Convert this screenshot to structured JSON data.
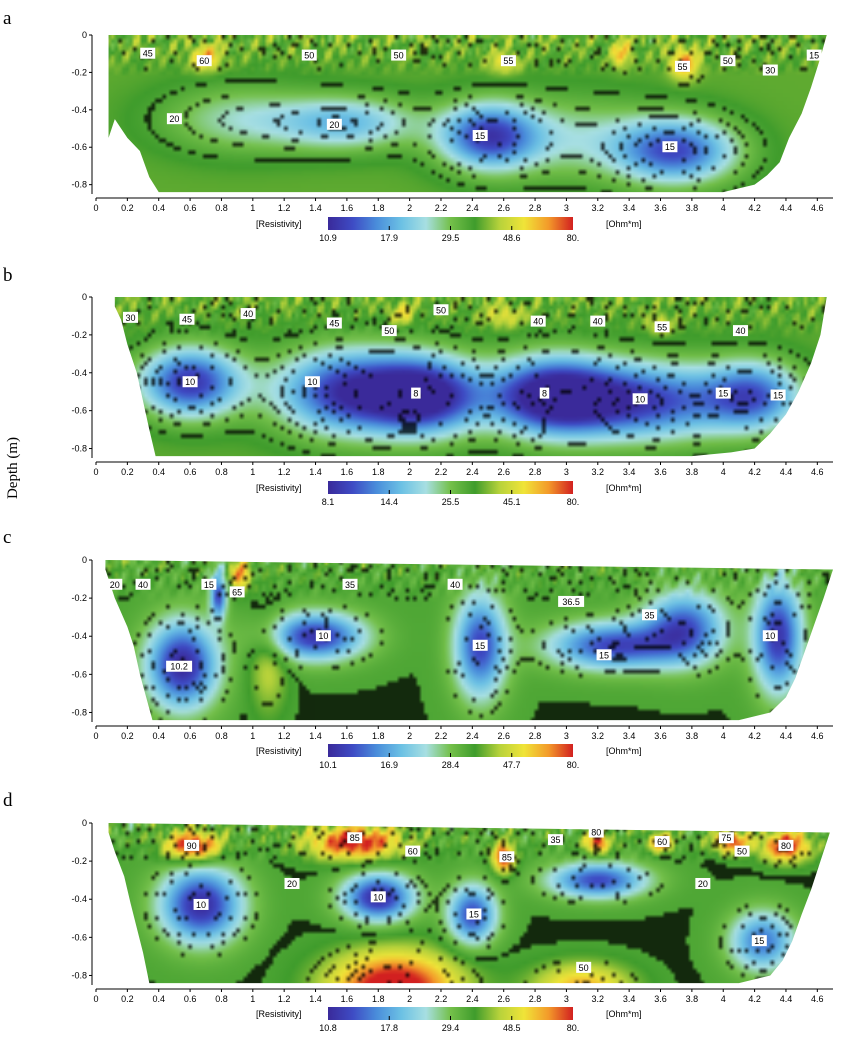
{
  "figure": {
    "ylabel": "Depth (m)"
  },
  "colorscale": {
    "colors": [
      "#3a2a9a",
      "#3e4bc4",
      "#4a8edb",
      "#6cc1e4",
      "#a7dfe2",
      "#74c04a",
      "#3f9c2c",
      "#b7d23b",
      "#f0e438",
      "#f39a2a",
      "#d22020"
    ]
  },
  "chart_data": [
    {
      "type": "heatmap",
      "panel": "a",
      "x_ticks": [
        "0",
        "0.2",
        "0.4",
        "0.6",
        "0.8",
        "1",
        "1.2",
        "1.4",
        "1.6",
        "1.8",
        "2",
        "2.2",
        "2.4",
        "2.6",
        "2.8",
        "3",
        "3.2",
        "3.4",
        "3.6",
        "3.8",
        "4",
        "4.2",
        "4.4",
        "4.6"
      ],
      "y_ticks": [
        "0",
        "-0.2",
        "-0.4",
        "-0.6",
        "-0.8"
      ],
      "xlim": [
        0,
        4.7
      ],
      "ylim": [
        -0.85,
        0
      ],
      "colorbar": {
        "label": "[Resistivity]",
        "unit": "[Ohm*m]",
        "values": [
          "10.9",
          "17.9",
          "29.5",
          "48.6",
          "80."
        ],
        "min": 10.9,
        "max": 80
      },
      "background": 38,
      "surface_noise": 14,
      "anomalies": [
        {
          "x": 1.6,
          "y": -0.47,
          "rx": 0.45,
          "ry": 0.14,
          "value": 20
        },
        {
          "x": 2.5,
          "y": -0.54,
          "rx": 0.3,
          "ry": 0.17,
          "value": 14
        },
        {
          "x": 3.7,
          "y": -0.62,
          "rx": 0.38,
          "ry": 0.17,
          "value": 14
        },
        {
          "x": 0.9,
          "y": -0.45,
          "rx": 0.5,
          "ry": 0.18,
          "value": 26
        },
        {
          "x": 3.0,
          "y": -0.55,
          "rx": 0.6,
          "ry": 0.22,
          "value": 26
        },
        {
          "x": 0.7,
          "y": -0.12,
          "rx": 0.1,
          "ry": 0.07,
          "value": 62
        },
        {
          "x": 3.75,
          "y": -0.15,
          "rx": 0.09,
          "ry": 0.08,
          "value": 68
        },
        {
          "x": 3.35,
          "y": -0.1,
          "rx": 0.06,
          "ry": 0.07,
          "value": 60
        },
        {
          "x": 2.6,
          "y": -0.15,
          "rx": 0.1,
          "ry": 0.06,
          "value": 52
        }
      ],
      "bottom_profile": [
        [
          0.08,
          -0.55
        ],
        [
          0.12,
          -0.45
        ],
        [
          0.2,
          -0.55
        ],
        [
          0.28,
          -0.62
        ],
        [
          0.34,
          -0.76
        ],
        [
          0.4,
          -0.84
        ],
        [
          1.0,
          -0.84
        ],
        [
          2.0,
          -0.84
        ],
        [
          3.0,
          -0.84
        ],
        [
          3.6,
          -0.84
        ],
        [
          4.0,
          -0.84
        ],
        [
          4.2,
          -0.8
        ],
        [
          4.28,
          -0.75
        ],
        [
          4.36,
          -0.68
        ],
        [
          4.42,
          -0.55
        ],
        [
          4.5,
          -0.42
        ],
        [
          4.56,
          -0.28
        ],
        [
          4.62,
          -0.12
        ],
        [
          4.66,
          0
        ]
      ],
      "contour_labels": [
        {
          "text": "45",
          "x": 0.33,
          "y": -0.1
        },
        {
          "text": "60",
          "x": 0.69,
          "y": -0.14
        },
        {
          "text": "50",
          "x": 1.36,
          "y": -0.11
        },
        {
          "text": "50",
          "x": 1.93,
          "y": -0.11
        },
        {
          "text": "55",
          "x": 2.63,
          "y": -0.14
        },
        {
          "text": "55",
          "x": 3.74,
          "y": -0.17
        },
        {
          "text": "50",
          "x": 4.03,
          "y": -0.14
        },
        {
          "text": "30",
          "x": 4.3,
          "y": -0.19
        },
        {
          "text": "15",
          "x": 4.58,
          "y": -0.11
        },
        {
          "text": "20",
          "x": 0.5,
          "y": -0.45
        },
        {
          "text": "20",
          "x": 1.52,
          "y": -0.48
        },
        {
          "text": "15",
          "x": 2.45,
          "y": -0.54
        },
        {
          "text": "15",
          "x": 3.66,
          "y": -0.6
        }
      ]
    },
    {
      "type": "heatmap",
      "panel": "b",
      "x_ticks": [
        "0",
        "0.2",
        "0.4",
        "0.6",
        "0.8",
        "1",
        "1.2",
        "1.4",
        "1.6",
        "1.8",
        "2",
        "2.2",
        "2.4",
        "2.6",
        "2.8",
        "3",
        "3.2",
        "3.4",
        "3.6",
        "3.8",
        "4",
        "4.2",
        "4.4",
        "4.6"
      ],
      "y_ticks": [
        "0",
        "-0.2",
        "-0.4",
        "-0.6",
        "-0.8"
      ],
      "xlim": [
        0,
        4.7
      ],
      "ylim": [
        -0.85,
        0
      ],
      "colorbar": {
        "label": "[Resistivity]",
        "unit": "[Ohm*m]",
        "values": [
          "8.1",
          "14.4",
          "25.5",
          "45.1",
          "80."
        ],
        "min": 8.1,
        "max": 80
      },
      "background": 34,
      "surface_noise": 12,
      "anomalies": [
        {
          "x": 0.6,
          "y": -0.45,
          "rx": 0.32,
          "ry": 0.18,
          "value": 9
        },
        {
          "x": 1.6,
          "y": -0.5,
          "rx": 0.45,
          "ry": 0.22,
          "value": 9
        },
        {
          "x": 2.1,
          "y": -0.52,
          "rx": 0.35,
          "ry": 0.2,
          "value": 8
        },
        {
          "x": 2.9,
          "y": -0.52,
          "rx": 0.4,
          "ry": 0.2,
          "value": 8
        },
        {
          "x": 3.5,
          "y": -0.55,
          "rx": 0.6,
          "ry": 0.2,
          "value": 10
        },
        {
          "x": 4.2,
          "y": -0.52,
          "rx": 0.3,
          "ry": 0.18,
          "value": 13
        },
        {
          "x": 2.6,
          "y": -0.1,
          "rx": 0.12,
          "ry": 0.06,
          "value": 48
        },
        {
          "x": 1.95,
          "y": -0.09,
          "rx": 0.08,
          "ry": 0.06,
          "value": 52
        },
        {
          "x": 3.6,
          "y": -0.15,
          "rx": 0.08,
          "ry": 0.05,
          "value": 48
        }
      ],
      "bottom_profile": [
        [
          0.12,
          -0.05
        ],
        [
          0.16,
          -0.12
        ],
        [
          0.2,
          -0.25
        ],
        [
          0.26,
          -0.4
        ],
        [
          0.3,
          -0.55
        ],
        [
          0.34,
          -0.7
        ],
        [
          0.38,
          -0.84
        ],
        [
          1.0,
          -0.84
        ],
        [
          2.0,
          -0.84
        ],
        [
          3.0,
          -0.84
        ],
        [
          3.8,
          -0.84
        ],
        [
          4.05,
          -0.82
        ],
        [
          4.2,
          -0.8
        ],
        [
          4.3,
          -0.72
        ],
        [
          4.4,
          -0.62
        ],
        [
          4.48,
          -0.5
        ],
        [
          4.56,
          -0.35
        ],
        [
          4.62,
          -0.2
        ],
        [
          4.66,
          0
        ]
      ],
      "contour_labels": [
        {
          "text": "30",
          "x": 0.22,
          "y": -0.11
        },
        {
          "text": "45",
          "x": 0.58,
          "y": -0.12
        },
        {
          "text": "40",
          "x": 0.97,
          "y": -0.09
        },
        {
          "text": "45",
          "x": 1.52,
          "y": -0.14
        },
        {
          "text": "50",
          "x": 1.87,
          "y": -0.18
        },
        {
          "text": "50",
          "x": 2.2,
          "y": -0.07
        },
        {
          "text": "40",
          "x": 2.82,
          "y": -0.13
        },
        {
          "text": "40",
          "x": 3.2,
          "y": -0.13
        },
        {
          "text": "55",
          "x": 3.61,
          "y": -0.16
        },
        {
          "text": "40",
          "x": 4.11,
          "y": -0.18
        },
        {
          "text": "10",
          "x": 0.6,
          "y": -0.45
        },
        {
          "text": "10",
          "x": 1.38,
          "y": -0.45
        },
        {
          "text": "8",
          "x": 2.04,
          "y": -0.51
        },
        {
          "text": "8",
          "x": 2.86,
          "y": -0.51
        },
        {
          "text": "10",
          "x": 3.47,
          "y": -0.54
        },
        {
          "text": "15",
          "x": 4.0,
          "y": -0.51
        },
        {
          "text": "15",
          "x": 4.35,
          "y": -0.52
        }
      ]
    },
    {
      "type": "heatmap",
      "panel": "c",
      "x_ticks": [
        "0",
        "0.2",
        "0.4",
        "0.6",
        "0.8",
        "1",
        "1.2",
        "1.4",
        "1.6",
        "1.8",
        "2",
        "2.2",
        "2.4",
        "2.6",
        "2.8",
        "3",
        "3.2",
        "3.4",
        "3.6",
        "3.8",
        "4",
        "4.2",
        "4.4",
        "4.6"
      ],
      "y_ticks": [
        "0",
        "-0.2",
        "-0.4",
        "-0.6",
        "-0.8"
      ],
      "xlim": [
        0,
        4.7
      ],
      "ylim": [
        -0.85,
        0
      ],
      "colorbar": {
        "label": "[Resistivity]",
        "unit": "[Ohm*m]",
        "values": [
          "10.1",
          "16.9",
          "28.4",
          "47.7",
          "80."
        ],
        "min": 10.1,
        "max": 80
      },
      "background": 33,
      "surface_noise": 12,
      "anomalies": [
        {
          "x": 0.55,
          "y": -0.55,
          "rx": 0.22,
          "ry": 0.22,
          "value": 10
        },
        {
          "x": 0.78,
          "y": -0.18,
          "rx": 0.05,
          "ry": 0.12,
          "value": 12
        },
        {
          "x": 1.4,
          "y": -0.4,
          "rx": 0.3,
          "ry": 0.12,
          "value": 11
        },
        {
          "x": 2.45,
          "y": -0.45,
          "rx": 0.16,
          "ry": 0.26,
          "value": 12
        },
        {
          "x": 3.3,
          "y": -0.45,
          "rx": 0.4,
          "ry": 0.12,
          "value": 12
        },
        {
          "x": 3.75,
          "y": -0.35,
          "rx": 0.25,
          "ry": 0.18,
          "value": 13
        },
        {
          "x": 4.35,
          "y": -0.4,
          "rx": 0.15,
          "ry": 0.28,
          "value": 11
        },
        {
          "x": 0.92,
          "y": -0.08,
          "rx": 0.06,
          "ry": 0.08,
          "value": 70
        },
        {
          "x": 1.1,
          "y": -0.55,
          "rx": 0.12,
          "ry": 0.25,
          "value": 45
        }
      ],
      "bottom_profile": [
        [
          0.06,
          -0.05
        ],
        [
          0.12,
          -0.2
        ],
        [
          0.2,
          -0.35
        ],
        [
          0.24,
          -0.45
        ],
        [
          0.28,
          -0.6
        ],
        [
          0.32,
          -0.72
        ],
        [
          0.36,
          -0.84
        ],
        [
          1.0,
          -0.84
        ],
        [
          2.0,
          -0.84
        ],
        [
          3.0,
          -0.84
        ],
        [
          4.1,
          -0.84
        ],
        [
          4.3,
          -0.8
        ],
        [
          4.4,
          -0.72
        ],
        [
          4.46,
          -0.62
        ],
        [
          4.52,
          -0.48
        ],
        [
          4.58,
          -0.34
        ],
        [
          4.64,
          -0.2
        ],
        [
          4.7,
          -0.05
        ]
      ],
      "contour_labels": [
        {
          "text": "20",
          "x": 0.12,
          "y": -0.13
        },
        {
          "text": "40",
          "x": 0.3,
          "y": -0.13
        },
        {
          "text": "15",
          "x": 0.72,
          "y": -0.13
        },
        {
          "text": "65",
          "x": 0.9,
          "y": -0.17
        },
        {
          "text": "35",
          "x": 1.62,
          "y": -0.13
        },
        {
          "text": "40",
          "x": 2.29,
          "y": -0.13
        },
        {
          "text": "36.5",
          "x": 3.03,
          "y": -0.22
        },
        {
          "text": "35",
          "x": 3.53,
          "y": -0.29
        },
        {
          "text": "10",
          "x": 1.45,
          "y": -0.4
        },
        {
          "text": "10.2",
          "x": 0.53,
          "y": -0.56
        },
        {
          "text": "15",
          "x": 2.45,
          "y": -0.45
        },
        {
          "text": "15",
          "x": 3.24,
          "y": -0.5
        },
        {
          "text": "10",
          "x": 4.3,
          "y": -0.4
        }
      ]
    },
    {
      "type": "heatmap",
      "panel": "d",
      "x_ticks": [
        "0",
        "0.2",
        "0.4",
        "0.6",
        "0.8",
        "1",
        "1.2",
        "1.4",
        "1.6",
        "1.8",
        "2",
        "2.2",
        "2.4",
        "2.6",
        "2.8",
        "3",
        "3.2",
        "3.4",
        "3.6",
        "3.8",
        "4",
        "4.2",
        "4.4",
        "4.6"
      ],
      "y_ticks": [
        "0",
        "-0.2",
        "-0.4",
        "-0.6",
        "-0.8"
      ],
      "xlim": [
        0,
        4.7
      ],
      "ylim": [
        -0.85,
        0
      ],
      "colorbar": {
        "label": "[Resistivity]",
        "unit": "[Ohm*m]",
        "values": [
          "10.8",
          "17.8",
          "29.4",
          "48.5",
          "80."
        ],
        "min": 10.8,
        "max": 80
      },
      "background": 34,
      "surface_noise": 14,
      "anomalies": [
        {
          "x": 0.62,
          "y": -0.12,
          "rx": 0.18,
          "ry": 0.08,
          "value": 88
        },
        {
          "x": 1.65,
          "y": -0.1,
          "rx": 0.3,
          "ry": 0.09,
          "value": 85
        },
        {
          "x": 2.6,
          "y": -0.18,
          "rx": 0.07,
          "ry": 0.08,
          "value": 82
        },
        {
          "x": 3.2,
          "y": -0.1,
          "rx": 0.08,
          "ry": 0.06,
          "value": 80
        },
        {
          "x": 3.6,
          "y": -0.1,
          "rx": 0.08,
          "ry": 0.05,
          "value": 72
        },
        {
          "x": 4.05,
          "y": -0.1,
          "rx": 0.12,
          "ry": 0.06,
          "value": 75
        },
        {
          "x": 4.4,
          "y": -0.12,
          "rx": 0.15,
          "ry": 0.08,
          "value": 85
        },
        {
          "x": 1.9,
          "y": -0.86,
          "rx": 0.4,
          "ry": 0.18,
          "value": 95
        },
        {
          "x": 3.1,
          "y": -0.86,
          "rx": 0.3,
          "ry": 0.12,
          "value": 62
        },
        {
          "x": 0.67,
          "y": -0.43,
          "rx": 0.25,
          "ry": 0.19,
          "value": 11
        },
        {
          "x": 1.8,
          "y": -0.39,
          "rx": 0.22,
          "ry": 0.12,
          "value": 11
        },
        {
          "x": 2.4,
          "y": -0.48,
          "rx": 0.15,
          "ry": 0.15,
          "value": 13
        },
        {
          "x": 3.2,
          "y": -0.3,
          "rx": 0.3,
          "ry": 0.09,
          "value": 13
        },
        {
          "x": 4.25,
          "y": -0.62,
          "rx": 0.2,
          "ry": 0.15,
          "value": 15
        }
      ],
      "bottom_profile": [
        [
          0.08,
          -0.05
        ],
        [
          0.12,
          -0.15
        ],
        [
          0.18,
          -0.28
        ],
        [
          0.22,
          -0.42
        ],
        [
          0.26,
          -0.55
        ],
        [
          0.3,
          -0.68
        ],
        [
          0.34,
          -0.84
        ],
        [
          1.0,
          -0.84
        ],
        [
          2.0,
          -0.84
        ],
        [
          3.0,
          -0.84
        ],
        [
          4.1,
          -0.84
        ],
        [
          4.3,
          -0.8
        ],
        [
          4.38,
          -0.72
        ],
        [
          4.44,
          -0.62
        ],
        [
          4.5,
          -0.48
        ],
        [
          4.56,
          -0.35
        ],
        [
          4.62,
          -0.2
        ],
        [
          4.68,
          -0.05
        ]
      ],
      "contour_labels": [
        {
          "text": "90",
          "x": 0.61,
          "y": -0.12
        },
        {
          "text": "85",
          "x": 1.65,
          "y": -0.08
        },
        {
          "text": "60",
          "x": 2.02,
          "y": -0.15
        },
        {
          "text": "85",
          "x": 2.62,
          "y": -0.18
        },
        {
          "text": "35",
          "x": 2.93,
          "y": -0.09
        },
        {
          "text": "80",
          "x": 3.19,
          "y": -0.05
        },
        {
          "text": "60",
          "x": 3.61,
          "y": -0.1
        },
        {
          "text": "75",
          "x": 4.02,
          "y": -0.08
        },
        {
          "text": "50",
          "x": 4.12,
          "y": -0.15
        },
        {
          "text": "80",
          "x": 4.4,
          "y": -0.12
        },
        {
          "text": "20",
          "x": 1.25,
          "y": -0.32
        },
        {
          "text": "10",
          "x": 0.67,
          "y": -0.43
        },
        {
          "text": "10",
          "x": 1.8,
          "y": -0.39
        },
        {
          "text": "15",
          "x": 2.41,
          "y": -0.48
        },
        {
          "text": "20",
          "x": 3.87,
          "y": -0.32
        },
        {
          "text": "15",
          "x": 4.23,
          "y": -0.62
        },
        {
          "text": "50",
          "x": 3.11,
          "y": -0.76
        }
      ]
    }
  ]
}
